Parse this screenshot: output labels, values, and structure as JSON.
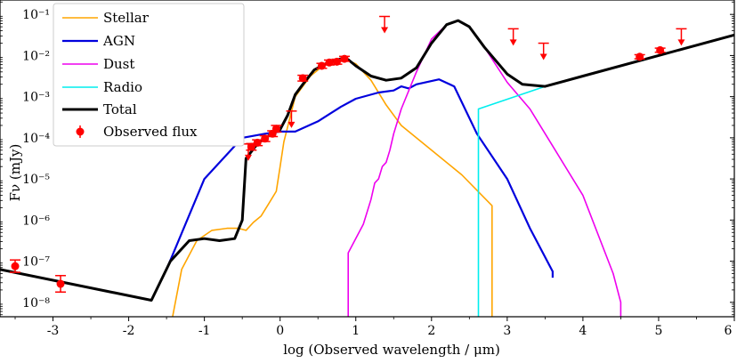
{
  "chart_data": {
    "type": "line",
    "title": "",
    "xlabel": "log (Observed wavelength / μm)",
    "ylabel": "Fν (mJy)",
    "xlim": [
      -3.7,
      6.0
    ],
    "ylim_log10": [
      -8.35,
      -0.65
    ],
    "y_scale": "log",
    "grid": false,
    "legend_position": "top-left",
    "x_ticks": [
      -3,
      -2,
      -1,
      0,
      1,
      2,
      3,
      4,
      5,
      6
    ],
    "x_tick_labels": [
      "-3",
      "-2",
      "-1",
      "0",
      "1",
      "2",
      "3",
      "4",
      "5",
      "6"
    ],
    "y_ticks_log10": [
      -8,
      -7,
      -6,
      -5,
      -4,
      -3,
      -2,
      -1
    ],
    "y_tick_labels": [
      "10⁻⁸",
      "10⁻⁷",
      "10⁻⁶",
      "10⁻⁵",
      "10⁻⁴",
      "10⁻³",
      "10⁻²",
      "10⁻¹"
    ],
    "legend": [
      {
        "key": "stellar",
        "label": "Stellar"
      },
      {
        "key": "agn",
        "label": "AGN"
      },
      {
        "key": "dust",
        "label": "Dust"
      },
      {
        "key": "radio",
        "label": "Radio"
      },
      {
        "key": "total",
        "label": "Total"
      },
      {
        "key": "observed",
        "label": "Observed flux"
      }
    ],
    "series": [
      {
        "key": "stellar",
        "name": "Stellar",
        "color": "#ffa500",
        "width": 1.6,
        "x": [
          -1.42,
          -1.3,
          -1.1,
          -0.9,
          -0.7,
          -0.55,
          -0.45,
          -0.35,
          -0.25,
          -0.15,
          -0.05,
          0.0,
          0.05,
          0.2,
          0.4,
          0.6,
          0.8,
          0.9,
          1.0,
          1.2,
          1.4,
          1.6,
          2.0,
          2.4,
          2.8,
          2.8
        ],
        "y": [
          -8.35,
          -7.2,
          -6.5,
          -6.25,
          -6.2,
          -6.2,
          -6.25,
          -6.05,
          -5.9,
          -5.6,
          -5.3,
          -4.7,
          -4.1,
          -3.0,
          -2.5,
          -2.2,
          -2.1,
          -2.12,
          -2.2,
          -2.6,
          -3.2,
          -3.7,
          -4.3,
          -4.9,
          -5.65,
          -8.35
        ]
      },
      {
        "key": "agn",
        "name": "AGN",
        "color": "#0000dd",
        "width": 2.2,
        "x": [
          -1.5,
          -1.0,
          -0.5,
          -0.2,
          0.0,
          0.2,
          0.5,
          0.8,
          1.0,
          1.3,
          1.5,
          1.6,
          1.7,
          1.8,
          2.1,
          2.3,
          2.6,
          3.0,
          3.3,
          3.6,
          3.6
        ],
        "y": [
          -7.2,
          -5.0,
          -4.0,
          -3.9,
          -3.85,
          -3.85,
          -3.6,
          -3.25,
          -3.05,
          -2.9,
          -2.85,
          -2.75,
          -2.8,
          -2.7,
          -2.58,
          -2.75,
          -3.9,
          -5.0,
          -6.2,
          -7.25,
          -7.4
        ]
      },
      {
        "key": "dust",
        "name": "Dust",
        "color": "#ee00ee",
        "width": 1.6,
        "x": [
          0.9,
          0.9,
          1.1,
          1.2,
          1.25,
          1.3,
          1.35,
          1.4,
          1.45,
          1.5,
          1.6,
          1.8,
          2.0,
          2.2,
          2.35,
          2.5,
          2.7,
          3.0,
          3.3,
          3.6,
          4.0,
          4.4,
          4.5,
          4.5
        ],
        "y": [
          -8.35,
          -6.8,
          -6.1,
          -5.5,
          -5.1,
          -5.0,
          -4.7,
          -4.6,
          -4.3,
          -3.9,
          -3.3,
          -2.4,
          -1.6,
          -1.25,
          -1.15,
          -1.3,
          -1.8,
          -2.65,
          -3.3,
          -4.2,
          -5.4,
          -7.3,
          -8.0,
          -8.35
        ]
      },
      {
        "key": "radio",
        "name": "Radio",
        "color": "#00eeee",
        "width": 1.6,
        "x": [
          2.62,
          2.62,
          3.5
        ],
        "y": [
          -8.35,
          -3.3,
          -2.75
        ]
      },
      {
        "key": "total",
        "name": "Total",
        "color": "#000000",
        "width": 3.0,
        "x": [
          -3.7,
          -1.7,
          -1.45,
          -1.2,
          -1.0,
          -0.8,
          -0.6,
          -0.5,
          -0.45,
          -0.3,
          -0.2,
          -0.1,
          0.0,
          0.1,
          0.2,
          0.3,
          0.45,
          0.6,
          0.8,
          0.9,
          1.0,
          1.2,
          1.4,
          1.6,
          1.8,
          2.0,
          2.2,
          2.35,
          2.5,
          2.7,
          3.0,
          3.2,
          3.5,
          4.0,
          5.0,
          6.0
        ],
        "y": [
          -7.2,
          -7.95,
          -7.0,
          -6.5,
          -6.45,
          -6.5,
          -6.45,
          -6.0,
          -4.5,
          -4.15,
          -4.0,
          -3.9,
          -3.8,
          -3.45,
          -2.95,
          -2.7,
          -2.35,
          -2.2,
          -2.08,
          -2.1,
          -2.25,
          -2.5,
          -2.6,
          -2.55,
          -2.3,
          -1.7,
          -1.25,
          -1.15,
          -1.3,
          -1.8,
          -2.45,
          -2.7,
          -2.75,
          -2.5,
          -2.0,
          -1.5
        ]
      }
    ],
    "observed": {
      "label": "Observed flux",
      "color": "#ff0000",
      "points": [
        {
          "x": -3.5,
          "y": -7.12,
          "err": 0.15
        },
        {
          "x": -2.9,
          "y": -7.55,
          "err": 0.2
        },
        {
          "x": -0.38,
          "y": -4.22,
          "err": 0.08
        },
        {
          "x": -0.3,
          "y": -4.12,
          "err": 0.07
        },
        {
          "x": -0.2,
          "y": -4.02,
          "err": 0.07
        },
        {
          "x": -0.1,
          "y": -3.9,
          "err": 0.07
        },
        {
          "x": -0.05,
          "y": -3.78,
          "err": 0.08
        },
        {
          "x": 0.3,
          "y": -2.55,
          "err": 0.07
        },
        {
          "x": 0.55,
          "y": -2.25,
          "err": 0.06
        },
        {
          "x": 0.65,
          "y": -2.17,
          "err": 0.06
        },
        {
          "x": 0.75,
          "y": -2.15,
          "err": 0.06
        },
        {
          "x": 0.85,
          "y": -2.08,
          "err": 0.06
        },
        {
          "x": 4.75,
          "y": -2.03,
          "err": 0.05
        },
        {
          "x": 5.02,
          "y": -1.87,
          "err": 0.05
        }
      ],
      "upper_limits": [
        {
          "x": -0.42,
          "y": -4.15
        },
        {
          "x": 0.15,
          "y": -3.35
        },
        {
          "x": 1.38,
          "y": -1.05
        },
        {
          "x": 3.08,
          "y": -1.35
        },
        {
          "x": 3.48,
          "y": -1.7
        },
        {
          "x": 5.3,
          "y": -1.35
        }
      ]
    }
  }
}
